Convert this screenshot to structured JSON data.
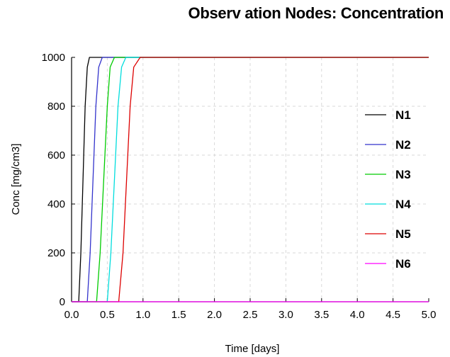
{
  "chart_data": {
    "type": "line",
    "title": "Observ ation Nodes: Concentration",
    "xlabel": "Time [days]",
    "ylabel": "Conc [mg/cm3]",
    "xlim": [
      0.0,
      5.0
    ],
    "ylim": [
      0,
      1000
    ],
    "x_ticks": [
      "0.0",
      "0.5",
      "1.0",
      "1.5",
      "2.0",
      "2.5",
      "3.0",
      "3.5",
      "4.0",
      "4.5",
      "5.0"
    ],
    "y_ticks": [
      "0",
      "200",
      "400",
      "600",
      "800",
      "1000"
    ],
    "grid": true,
    "legend_position": "right",
    "series": [
      {
        "name": "N1",
        "color": "#000000",
        "x": [
          0.0,
          0.1,
          0.13,
          0.16,
          0.19,
          0.22,
          0.25,
          5.0
        ],
        "y": [
          0,
          0,
          200,
          500,
          800,
          960,
          1000,
          1000
        ]
      },
      {
        "name": "N2",
        "color": "#3333cc",
        "x": [
          0.0,
          0.22,
          0.26,
          0.3,
          0.34,
          0.38,
          0.43,
          5.0
        ],
        "y": [
          0,
          0,
          200,
          500,
          800,
          960,
          1000,
          1000
        ]
      },
      {
        "name": "N3",
        "color": "#00cc00",
        "x": [
          0.0,
          0.35,
          0.4,
          0.45,
          0.5,
          0.54,
          0.6,
          5.0
        ],
        "y": [
          0,
          0,
          200,
          500,
          800,
          960,
          1000,
          1000
        ]
      },
      {
        "name": "N4",
        "color": "#00dddd",
        "x": [
          0.0,
          0.5,
          0.55,
          0.6,
          0.65,
          0.7,
          0.76,
          5.0
        ],
        "y": [
          0,
          0,
          200,
          500,
          800,
          960,
          1000,
          1000
        ]
      },
      {
        "name": "N5",
        "color": "#dd0000",
        "x": [
          0.0,
          0.66,
          0.72,
          0.77,
          0.82,
          0.87,
          0.96,
          5.0
        ],
        "y": [
          0,
          0,
          200,
          500,
          800,
          960,
          1000,
          1000
        ]
      },
      {
        "name": "N6",
        "color": "#ff00ff",
        "x": [
          0.0,
          5.0
        ],
        "y": [
          0,
          0
        ]
      }
    ]
  }
}
